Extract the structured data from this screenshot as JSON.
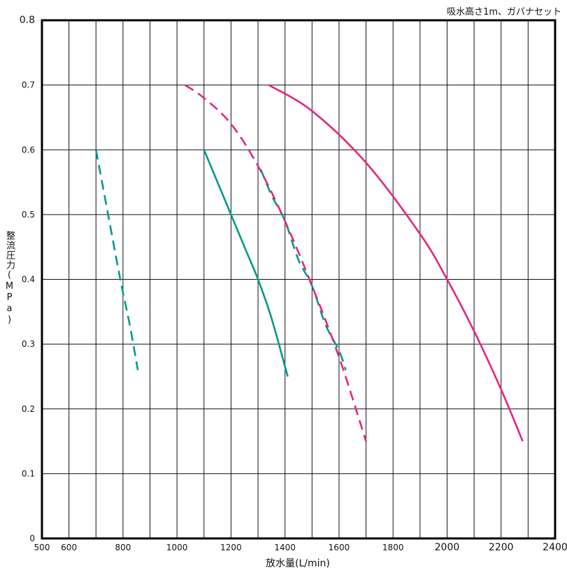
{
  "note": "吸水高さ1m、ガバナセット",
  "chart_data": {
    "type": "line",
    "xlabel": "放水量(L/min)",
    "ylabel": "整流圧力(MPa)",
    "xlim": [
      500,
      2400
    ],
    "ylim": [
      0,
      0.8
    ],
    "x_ticks": [
      {
        "value": 500,
        "label": "500"
      },
      {
        "value": 600,
        "label": "600"
      },
      {
        "value": 800,
        "label": "800"
      },
      {
        "value": 1000,
        "label": "1000"
      },
      {
        "value": 1200,
        "label": "1200"
      },
      {
        "value": 1400,
        "label": "1400"
      },
      {
        "value": 1600,
        "label": "1600"
      },
      {
        "value": 1800,
        "label": "1800"
      },
      {
        "value": 2000,
        "label": "2000"
      },
      {
        "value": 2200,
        "label": "2200"
      },
      {
        "value": 2400,
        "label": "2400"
      }
    ],
    "y_ticks": [
      {
        "value": 0,
        "label": "0"
      },
      {
        "value": 0.1,
        "label": "0.1"
      },
      {
        "value": 0.2,
        "label": "0.2"
      },
      {
        "value": 0.3,
        "label": "0.3"
      },
      {
        "value": 0.4,
        "label": "0.4"
      },
      {
        "value": 0.5,
        "label": "0.5"
      },
      {
        "value": 0.6,
        "label": "0.6"
      },
      {
        "value": 0.7,
        "label": "0.7"
      },
      {
        "value": 0.8,
        "label": "0.8"
      }
    ],
    "x_grid": [
      600,
      700,
      800,
      900,
      1000,
      1100,
      1200,
      1300,
      1400,
      1500,
      1600,
      1700,
      1800,
      1900,
      2000,
      2100,
      2200,
      2300
    ],
    "y_grid": [
      0.1,
      0.2,
      0.3,
      0.4,
      0.5,
      0.6,
      0.7
    ],
    "grid": true,
    "series": [
      {
        "color": "#00998a",
        "dashed": true,
        "points": [
          [
            700,
            0.6
          ],
          [
            745,
            0.5
          ],
          [
            790,
            0.4
          ],
          [
            825,
            0.33
          ],
          [
            855,
            0.26
          ]
        ]
      },
      {
        "color": "#00998a",
        "dashed": false,
        "points": [
          [
            1100,
            0.6
          ],
          [
            1150,
            0.55
          ],
          [
            1200,
            0.5
          ],
          [
            1260,
            0.44
          ],
          [
            1300,
            0.4
          ],
          [
            1350,
            0.34
          ],
          [
            1410,
            0.25
          ]
        ]
      },
      {
        "color": "#00998a",
        "dashed": true,
        "points": [
          [
            1310,
            0.57
          ],
          [
            1350,
            0.53
          ],
          [
            1400,
            0.49
          ],
          [
            1450,
            0.43
          ],
          [
            1500,
            0.39
          ],
          [
            1550,
            0.33
          ],
          [
            1600,
            0.29
          ],
          [
            1625,
            0.26
          ]
        ]
      },
      {
        "color": "#e2267f",
        "dashed": true,
        "points": [
          [
            1030,
            0.7
          ],
          [
            1100,
            0.68
          ],
          [
            1200,
            0.64
          ],
          [
            1300,
            0.575
          ],
          [
            1400,
            0.49
          ],
          [
            1500,
            0.39
          ],
          [
            1600,
            0.28
          ],
          [
            1700,
            0.15
          ]
        ]
      },
      {
        "color": "#e2267f",
        "dashed": false,
        "points": [
          [
            1340,
            0.7
          ],
          [
            1500,
            0.66
          ],
          [
            1700,
            0.58
          ],
          [
            1900,
            0.47
          ],
          [
            2000,
            0.4
          ],
          [
            2100,
            0.32
          ],
          [
            2200,
            0.23
          ],
          [
            2280,
            0.15
          ]
        ]
      }
    ]
  }
}
